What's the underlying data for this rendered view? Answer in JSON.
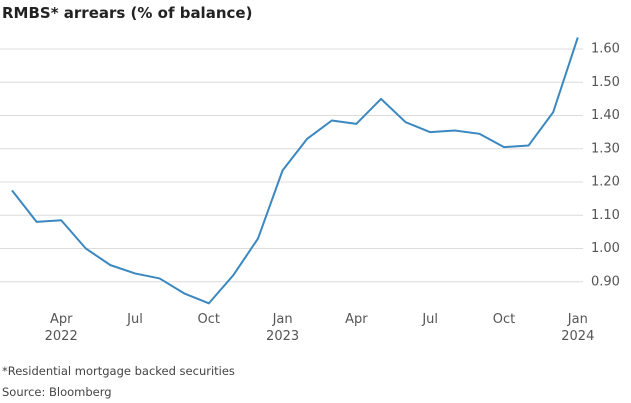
{
  "chart_data": {
    "type": "line",
    "title": "RMBS* arrears (% of balance)",
    "footnote": "*Residential mortgage backed securities",
    "source": "Source: Bloomberg",
    "categories": [
      null,
      null,
      "Apr 2022",
      null,
      null,
      "Jul",
      null,
      null,
      "Oct",
      null,
      null,
      "Jan 2023",
      null,
      null,
      "Apr",
      null,
      null,
      "Jul",
      null,
      null,
      "Oct",
      null,
      null,
      "Jan 2024"
    ],
    "series": [
      {
        "color": "#3b88c0",
        "values": [
          1.175,
          1.08,
          1.085,
          1.0,
          0.95,
          0.925,
          0.91,
          0.865,
          0.835,
          0.92,
          1.03,
          1.235,
          1.33,
          1.385,
          1.375,
          1.45,
          1.38,
          1.35,
          1.355,
          1.345,
          1.305,
          1.31,
          1.41,
          1.635
        ]
      }
    ],
    "ylim": [
      0.8,
      1.65
    ],
    "yticks": [
      {
        "value": 0.9,
        "label": "0.90"
      },
      {
        "value": 1.0,
        "label": "1.00"
      },
      {
        "value": 1.1,
        "label": "1.10"
      },
      {
        "value": 1.2,
        "label": "1.20"
      },
      {
        "value": 1.3,
        "label": "1.30"
      },
      {
        "value": 1.4,
        "label": "1.40"
      },
      {
        "value": 1.5,
        "label": "1.50"
      },
      {
        "value": 1.6,
        "label": "1.60"
      }
    ],
    "grid": true
  }
}
